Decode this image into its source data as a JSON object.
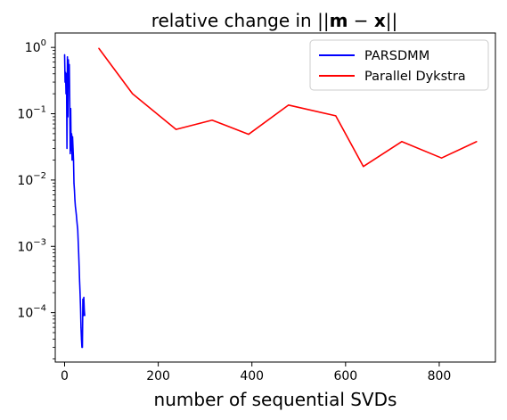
{
  "chart_data": {
    "type": "line",
    "title": "relative change in ||m − x||",
    "title_parts": {
      "prefix": "relative change in ",
      "bars_left": "||",
      "var_m": "m",
      "minus": " − ",
      "var_x": "x",
      "bars_right": "||"
    },
    "xlabel": "number of sequential SVDs",
    "ylabel": "",
    "y_scale": "log",
    "xlim": [
      -20,
      920
    ],
    "ylim": [
      1.8e-05,
      1.65
    ],
    "x_ticks": [
      {
        "value": 0,
        "label": "0"
      },
      {
        "value": 200,
        "label": "200"
      },
      {
        "value": 400,
        "label": "400"
      },
      {
        "value": 600,
        "label": "600"
      },
      {
        "value": 800,
        "label": "800"
      }
    ],
    "y_ticks": [
      {
        "value": 1,
        "base": "10",
        "exp": "0"
      },
      {
        "value": 0.1,
        "base": "10",
        "exp": "−1"
      },
      {
        "value": 0.01,
        "base": "10",
        "exp": "−2"
      },
      {
        "value": 0.001,
        "base": "10",
        "exp": "−3"
      },
      {
        "value": 0.0001,
        "base": "10",
        "exp": "−4"
      }
    ],
    "grid": false,
    "legend_position": "top-right",
    "series": [
      {
        "name": "PARSDMM",
        "color": "#0000ff",
        "x": [
          0,
          1,
          2,
          3,
          4,
          5,
          6,
          7,
          8,
          9,
          10,
          11,
          12,
          13,
          14,
          15,
          16,
          17,
          18,
          19,
          20,
          21,
          22,
          23,
          24,
          25,
          26,
          27,
          28,
          29,
          30,
          31,
          32,
          33,
          34,
          35,
          36,
          37,
          38,
          39,
          40,
          41,
          42,
          43
        ],
        "y": [
          0.78,
          0.3,
          0.42,
          0.2,
          0.4,
          0.03,
          0.72,
          0.09,
          0.65,
          0.35,
          0.55,
          0.15,
          0.025,
          0.12,
          0.028,
          0.05,
          0.02,
          0.045,
          0.03,
          0.02,
          0.009,
          0.007,
          0.005,
          0.004,
          0.0035,
          0.003,
          0.0025,
          0.0021,
          0.0018,
          0.0012,
          0.0008,
          0.0005,
          0.0003,
          0.0002,
          0.00012,
          6e-05,
          4e-05,
          3e-05,
          3e-05,
          0.00016,
          9e-05,
          0.00017,
          0.00011,
          9e-05
        ]
      },
      {
        "name": "Parallel Dykstra",
        "color": "#ff0000",
        "x": [
          73,
          145,
          238,
          315,
          393,
          478,
          579,
          638,
          720,
          805,
          880
        ],
        "y": [
          0.97,
          0.2,
          0.058,
          0.08,
          0.049,
          0.135,
          0.093,
          0.016,
          0.038,
          0.0215,
          0.038
        ]
      }
    ]
  }
}
